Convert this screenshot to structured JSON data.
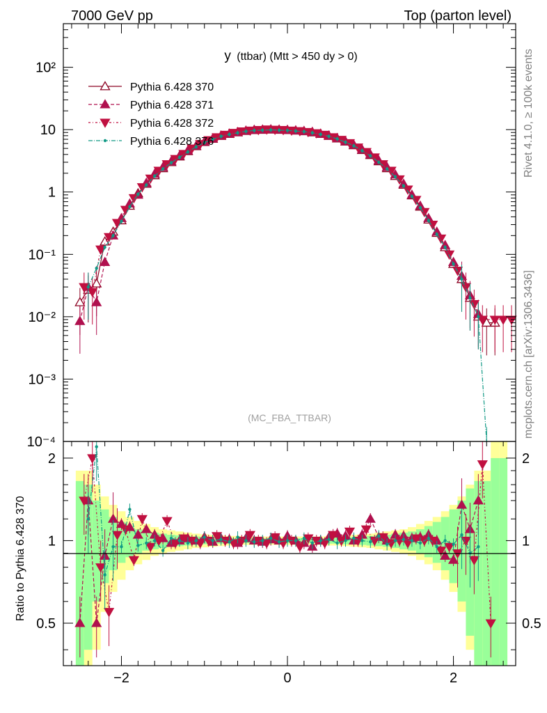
{
  "header": {
    "left": "7000 GeV pp",
    "right": "Top (parton level)"
  },
  "plot_title_main": "y",
  "plot_title_rest": "(ttbar) (Mtt > 450 dy > 0)",
  "watermark": "(MC_FBA_TTBAR)",
  "side_labels": {
    "rivet": "Rivet 4.1.0, ≥ 100k events",
    "mcplots": "mcplots.cern.ch [arXiv:1306.3436]"
  },
  "colors": {
    "p370": "#8b0020",
    "p371": "#b0104e",
    "p372": "#c01040",
    "p376": "#119985",
    "band_yellow": "#ffff99",
    "band_green": "#99ff99"
  },
  "chart_data": {
    "type": "line",
    "title": "y (ttbar) (Mtt > 450 dy > 0)",
    "xlabel": "",
    "ylabel_main": "",
    "ylabel_ratio": "Ratio to Pythia 6.428 370",
    "xlim": [
      -2.7,
      2.75
    ],
    "ylim_main": [
      0.0001,
      500
    ],
    "yscale_main": "log",
    "ylim_ratio": [
      0.35,
      2.3
    ],
    "yscale_ratio": "log",
    "x_ticks": [
      "−2",
      "0",
      "2"
    ],
    "y_ticks_main": [
      "10⁻⁴",
      "10⁻³",
      "10⁻²",
      "10⁻¹",
      "1",
      "10",
      "10²"
    ],
    "y_ticks_ratio": [
      "0.5",
      "1",
      "2"
    ],
    "legend": [
      "Pythia 6.428 370",
      "Pythia 6.428 371",
      "Pythia 6.428 372",
      "Pythia 6.428 376"
    ],
    "series": [
      {
        "name": "Pythia 6.428 370",
        "marker": "open-triangle-up",
        "x": [
          -2.5,
          -2.4,
          -2.3,
          -2.2,
          -2.1,
          -2.0,
          -1.9,
          -1.8,
          -1.7,
          -1.6,
          -1.5,
          -1.4,
          -1.3,
          -1.2,
          -1.1,
          -1.0,
          -0.9,
          -0.8,
          -0.7,
          -0.6,
          -0.5,
          -0.4,
          -0.3,
          -0.2,
          -0.1,
          0.0,
          0.1,
          0.2,
          0.3,
          0.4,
          0.5,
          0.6,
          0.7,
          0.8,
          0.9,
          1.0,
          1.1,
          1.2,
          1.3,
          1.4,
          1.5,
          1.6,
          1.7,
          1.8,
          1.9,
          2.0,
          2.1,
          2.2,
          2.3,
          2.4,
          2.5
        ],
        "y": [
          0.017,
          0.027,
          0.034,
          0.16,
          0.23,
          0.35,
          0.6,
          0.95,
          1.35,
          1.85,
          2.4,
          3.0,
          3.7,
          4.5,
          5.4,
          6.3,
          7.1,
          7.9,
          8.5,
          9.0,
          9.5,
          9.8,
          9.9,
          10.0,
          9.9,
          9.8,
          9.6,
          9.4,
          9.0,
          8.5,
          7.9,
          7.2,
          6.4,
          5.6,
          4.7,
          3.9,
          3.1,
          2.4,
          1.8,
          1.3,
          0.88,
          0.58,
          0.36,
          0.22,
          0.13,
          0.07,
          0.04,
          0.02,
          0.01,
          0.008,
          0.008
        ]
      },
      {
        "name": "Pythia 6.428 371",
        "marker": "filled-triangle-up",
        "x": [
          -2.5,
          -2.4,
          -2.3,
          -2.2,
          -2.1,
          -2.0,
          -1.9,
          -1.8,
          -1.7,
          -1.6,
          -1.5,
          -1.4,
          -1.3,
          -1.2,
          -1.1,
          -1.0,
          -0.9,
          -0.8,
          -0.7,
          -0.6,
          -0.5,
          -0.4,
          -0.3,
          -0.2,
          -0.1,
          0.0,
          0.1,
          0.2,
          0.3,
          0.4,
          0.5,
          0.6,
          0.7,
          0.8,
          0.9,
          1.0,
          1.1,
          1.2,
          1.3,
          1.4,
          1.5,
          1.6,
          1.7,
          1.8,
          1.9,
          2.0,
          2.1,
          2.2,
          2.3
        ],
        "y": [
          0.0085,
          0.03,
          0.017,
          0.075,
          0.2,
          0.38,
          0.65,
          0.9,
          1.4,
          1.95,
          2.5,
          3.1,
          3.8,
          4.6,
          5.5,
          6.4,
          7.2,
          8.0,
          8.6,
          9.1,
          9.6,
          9.9,
          10.0,
          10.1,
          10.0,
          9.9,
          9.7,
          9.5,
          9.2,
          8.6,
          8.0,
          7.3,
          6.5,
          5.7,
          4.8,
          4.0,
          3.2,
          2.5,
          1.9,
          1.35,
          0.9,
          0.6,
          0.38,
          0.23,
          0.14,
          0.075,
          0.045,
          0.022,
          0.011
        ]
      },
      {
        "name": "Pythia 6.428 372",
        "marker": "filled-triangle-down",
        "x": [
          -2.45,
          -2.35,
          -2.25,
          -2.15,
          -2.05,
          -1.95,
          -1.85,
          -1.75,
          -1.65,
          -1.55,
          -1.45,
          -1.35,
          -1.25,
          -1.15,
          -1.05,
          -0.95,
          -0.85,
          -0.75,
          -0.65,
          -0.55,
          -0.45,
          -0.35,
          -0.25,
          -0.15,
          -0.05,
          0.05,
          0.15,
          0.25,
          0.35,
          0.45,
          0.55,
          0.65,
          0.75,
          0.85,
          0.95,
          1.05,
          1.15,
          1.25,
          1.35,
          1.45,
          1.55,
          1.65,
          1.75,
          1.85,
          1.95,
          2.05,
          2.15,
          2.25,
          2.35,
          2.5,
          2.6,
          2.7
        ],
        "y": [
          0.03,
          0.025,
          0.12,
          0.19,
          0.32,
          0.52,
          0.8,
          1.2,
          1.65,
          2.2,
          2.8,
          3.4,
          4.1,
          5.0,
          5.9,
          6.8,
          7.6,
          8.3,
          8.9,
          9.4,
          9.7,
          9.9,
          10.1,
          10.0,
          9.9,
          9.7,
          9.5,
          9.2,
          8.8,
          8.3,
          7.6,
          6.9,
          6.1,
          5.2,
          4.4,
          3.6,
          2.8,
          2.2,
          1.6,
          1.1,
          0.75,
          0.48,
          0.3,
          0.18,
          0.1,
          0.055,
          0.03,
          0.016,
          0.009,
          0.009,
          0.009,
          0.009
        ]
      },
      {
        "name": "Pythia 6.428 376",
        "marker": "dot",
        "x": [
          -2.4,
          -2.3,
          -2.2,
          -2.1,
          -2.0,
          -1.9,
          -1.8,
          -1.7,
          -1.6,
          -1.5,
          -1.4,
          -1.3,
          -1.2,
          -1.1,
          -1.0,
          -0.9,
          -0.8,
          -0.7,
          -0.6,
          -0.5,
          -0.4,
          -0.3,
          -0.2,
          -0.1,
          0.0,
          0.1,
          0.2,
          0.3,
          0.4,
          0.5,
          0.6,
          0.7,
          0.8,
          0.9,
          1.0,
          1.1,
          1.2,
          1.3,
          1.4,
          1.5,
          1.6,
          1.7,
          1.8,
          1.9,
          2.0,
          2.1,
          2.2,
          2.3,
          2.4
        ],
        "y": [
          0.03,
          0.06,
          0.13,
          0.2,
          0.34,
          0.58,
          0.92,
          1.3,
          1.8,
          2.35,
          2.95,
          3.6,
          4.4,
          5.3,
          6.2,
          7.0,
          7.8,
          8.4,
          8.9,
          9.4,
          9.7,
          9.8,
          9.9,
          9.8,
          9.7,
          9.5,
          9.3,
          8.9,
          8.4,
          7.8,
          7.1,
          6.3,
          5.5,
          4.6,
          3.8,
          3.0,
          2.35,
          1.75,
          1.25,
          0.85,
          0.56,
          0.35,
          0.21,
          0.13,
          0.07,
          0.04,
          0.02,
          0.01,
          0.0001
        ]
      }
    ],
    "ratio_band": {
      "x_edges": [
        -2.55,
        -2.45,
        -2.35,
        -2.25,
        -2.15,
        -2.05,
        -1.95,
        -1.85,
        -1.75,
        -1.65,
        -1.55,
        -1.45,
        -1.35,
        -1.25,
        -1.15,
        -1.05,
        -0.95,
        -0.85,
        -0.75,
        -0.65,
        -0.55,
        -0.45,
        -0.35,
        -0.25,
        -0.15,
        -0.05,
        0.05,
        0.15,
        0.25,
        0.35,
        0.45,
        0.55,
        0.65,
        0.75,
        0.85,
        0.95,
        1.05,
        1.15,
        1.25,
        1.35,
        1.45,
        1.55,
        1.65,
        1.75,
        1.85,
        1.95,
        2.05,
        2.15,
        2.25,
        2.35,
        2.45,
        2.55,
        2.65
      ],
      "yellow_half_width": [
        0.8,
        0.8,
        0.6,
        0.45,
        0.35,
        0.28,
        0.22,
        0.18,
        0.15,
        0.12,
        0.1,
        0.09,
        0.08,
        0.07,
        0.06,
        0.055,
        0.05,
        0.045,
        0.04,
        0.04,
        0.035,
        0.035,
        0.035,
        0.035,
        0.035,
        0.035,
        0.035,
        0.035,
        0.035,
        0.035,
        0.04,
        0.04,
        0.045,
        0.05,
        0.055,
        0.06,
        0.07,
        0.08,
        0.09,
        0.1,
        0.12,
        0.15,
        0.18,
        0.22,
        0.28,
        0.35,
        0.45,
        0.6,
        0.8,
        0.8,
        1.3,
        1.3
      ],
      "green_half_width": [
        0.65,
        0.6,
        0.4,
        0.3,
        0.22,
        0.17,
        0.13,
        0.1,
        0.08,
        0.07,
        0.06,
        0.05,
        0.045,
        0.04,
        0.035,
        0.03,
        0.03,
        0.025,
        0.025,
        0.02,
        0.02,
        0.02,
        0.02,
        0.02,
        0.02,
        0.02,
        0.02,
        0.02,
        0.02,
        0.02,
        0.025,
        0.025,
        0.03,
        0.03,
        0.035,
        0.04,
        0.045,
        0.05,
        0.06,
        0.07,
        0.08,
        0.1,
        0.13,
        0.17,
        0.22,
        0.3,
        0.4,
        0.55,
        0.65,
        0.65,
        1.0,
        1.0
      ]
    },
    "ratio_series": [
      {
        "name": "Pythia 6.428 371",
        "x": [
          -2.5,
          -2.4,
          -2.3,
          -2.2,
          -2.1,
          -2.0,
          -1.9,
          -1.8,
          -1.7,
          -1.6,
          -1.5,
          -1.4,
          -1.3,
          -1.2,
          -1.1,
          -1.0,
          -0.9,
          -0.8,
          -0.7,
          -0.6,
          -0.5,
          -0.4,
          -0.3,
          -0.2,
          -0.1,
          0.0,
          0.1,
          0.2,
          0.3,
          0.4,
          0.5,
          0.6,
          0.7,
          0.8,
          0.9,
          1.0,
          1.1,
          1.2,
          1.3,
          1.4,
          1.5,
          1.6,
          1.7,
          1.8,
          1.9,
          2.0,
          2.1,
          2.2,
          2.3
        ],
        "y": [
          0.5,
          1.4,
          0.5,
          0.88,
          1.2,
          1.15,
          1.12,
          1.05,
          1.1,
          1.05,
          1.02,
          0.98,
          1.0,
          1.02,
          1.0,
          1.03,
          0.99,
          1.02,
          1.01,
          0.98,
          1.02,
          1.0,
          0.99,
          1.01,
          1.0,
          1.04,
          1.0,
          0.98,
          0.95,
          1.0,
          1.03,
          1.06,
          1.04,
          1.0,
          1.05,
          1.2,
          1.03,
          1.0,
          1.05,
          1.04,
          1.02,
          1.03,
          1.05,
          1.0,
          0.88,
          0.85,
          1.35,
          1.1,
          1.4
        ]
      },
      {
        "name": "Pythia 6.428 372",
        "x": [
          -2.45,
          -2.35,
          -2.25,
          -2.15,
          -2.05,
          -1.95,
          -1.85,
          -1.75,
          -1.65,
          -1.55,
          -1.45,
          -1.35,
          -1.25,
          -1.15,
          -1.05,
          -0.95,
          -0.85,
          -0.75,
          -0.65,
          -0.55,
          -0.45,
          -0.35,
          -0.25,
          -0.15,
          -0.05,
          0.05,
          0.15,
          0.25,
          0.35,
          0.45,
          0.55,
          0.65,
          0.75,
          0.85,
          0.95,
          1.05,
          1.15,
          1.25,
          1.35,
          1.45,
          1.55,
          1.65,
          1.75,
          1.85,
          1.95,
          2.05,
          2.15,
          2.25,
          2.35,
          2.45
        ],
        "y": [
          1.4,
          2.0,
          0.8,
          0.55,
          1.05,
          1.1,
          0.85,
          1.2,
          0.95,
          1.0,
          1.18,
          0.98,
          1.02,
          1.0,
          0.98,
          1.0,
          1.04,
          1.0,
          0.98,
          1.0,
          1.05,
          1.0,
          0.98,
          1.03,
          0.98,
          1.0,
          0.95,
          1.02,
          1.0,
          0.98,
          1.05,
          1.0,
          1.08,
          1.0,
          1.1,
          1.0,
          1.03,
          0.98,
          1.0,
          0.98,
          1.02,
          1.0,
          1.0,
          0.92,
          0.95,
          0.9,
          1.0,
          0.85,
          1.9,
          0.5
        ]
      },
      {
        "name": "Pythia 6.428 376",
        "x": [
          -2.4,
          -2.3,
          -2.2,
          -2.1,
          -2.0,
          -1.9,
          -1.8,
          -1.7,
          -1.6,
          -1.5,
          -1.4,
          -1.3,
          -1.2,
          -1.1,
          -1.0,
          -0.9,
          -0.8,
          -0.7,
          -0.6,
          -0.5,
          -0.4,
          -0.3,
          -0.2,
          -0.1,
          0.0,
          0.1,
          0.2,
          0.3,
          0.4,
          0.5,
          0.6,
          0.7,
          0.8,
          0.9,
          1.0,
          1.1,
          1.2,
          1.3,
          1.4,
          1.5,
          1.6,
          1.7,
          1.8,
          1.9,
          2.0,
          2.1,
          2.2,
          2.3
        ],
        "y": [
          1.2,
          2.2,
          0.75,
          0.95,
          0.95,
          1.3,
          0.96,
          0.98,
          1.0,
          0.92,
          1.02,
          1.0,
          0.98,
          1.0,
          1.03,
          1.0,
          1.01,
          0.99,
          1.03,
          1.0,
          0.99,
          1.0,
          1.02,
          0.99,
          1.0,
          1.0,
          1.02,
          0.98,
          1.0,
          1.01,
          0.98,
          1.0,
          1.02,
          1.0,
          0.99,
          1.04,
          0.97,
          1.0,
          1.01,
          1.0,
          0.98,
          1.02,
          0.95,
          1.0,
          0.97,
          1.05,
          0.9,
          0.95
        ]
      }
    ]
  }
}
